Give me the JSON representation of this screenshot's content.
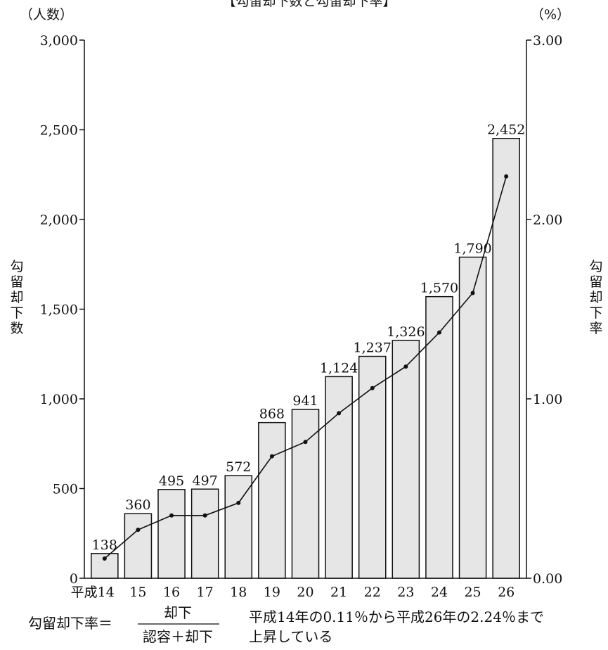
{
  "chart_data": {
    "type": "bar",
    "title": "【勾留却下数と勾留却下率】",
    "categories": [
      "平成14",
      "15",
      "16",
      "17",
      "18",
      "19",
      "20",
      "21",
      "22",
      "23",
      "24",
      "25",
      "26"
    ],
    "series": [
      {
        "type": "bar",
        "axis": "left",
        "values": [
          138,
          360,
          495,
          497,
          572,
          868,
          941,
          1124,
          1237,
          1326,
          1570,
          1790,
          2452
        ],
        "value_labels": [
          "138",
          "360",
          "495",
          "497",
          "572",
          "868",
          "941",
          "1,124",
          "1,237",
          "1,326",
          "1,570",
          "1,790",
          "2,452"
        ],
        "color": "#e6e6e6"
      },
      {
        "type": "line",
        "axis": "right",
        "values": [
          0.11,
          0.27,
          0.35,
          0.35,
          0.42,
          0.68,
          0.76,
          0.92,
          1.06,
          1.18,
          1.37,
          1.59,
          2.24
        ],
        "color": "#111111"
      }
    ],
    "y_left": {
      "unit": "（人数）",
      "label_chars": [
        "勾",
        "留",
        "却",
        "下",
        "数"
      ],
      "ylim": [
        0,
        3000
      ],
      "ticks": [
        0,
        500,
        1000,
        1500,
        2000,
        2500,
        3000
      ],
      "tick_labels": [
        "0",
        "500",
        "1,000",
        "1,500",
        "2,000",
        "2,500",
        "3,000"
      ]
    },
    "y_right": {
      "unit": "（%）",
      "label_chars": [
        "勾",
        "留",
        "却",
        "下",
        "率"
      ],
      "ylim": [
        0,
        3
      ],
      "ticks": [
        0,
        1,
        2,
        3
      ],
      "tick_labels": [
        "0.00",
        "1.00",
        "2.00",
        "3.00"
      ]
    },
    "grid": false,
    "legend": "none"
  },
  "notes": {
    "formula_lhs": "勾留却下率＝",
    "formula_numerator": "却下",
    "formula_denominator": "認容＋却下",
    "summary_line1": "平成14年の0.11％から平成26年の2.24％まで",
    "summary_line2": "上昇している"
  }
}
